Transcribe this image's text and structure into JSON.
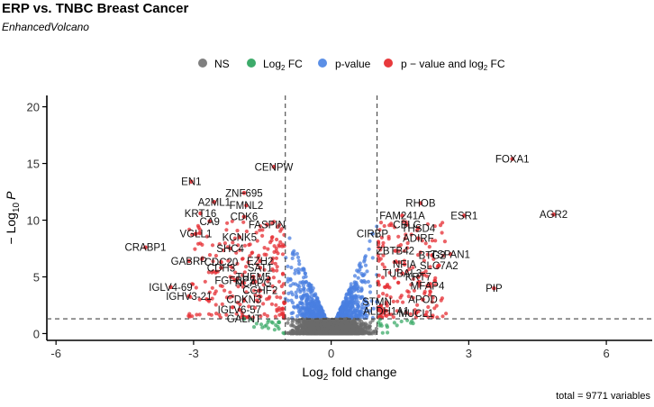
{
  "chart_data": {
    "type": "scatter",
    "title": "ERP vs. TNBC Breast Cancer",
    "subtitle": "EnhancedVolcano",
    "caption": "total = 9771 variables",
    "xlabel_main": "Log",
    "xlabel_sub": "2",
    "xlabel_rest": " fold change",
    "ylabel_prefix": "− Log",
    "ylabel_sub": "10",
    "ylabel_var": "P",
    "xlim": [
      -6.2,
      7.0
    ],
    "ylim": [
      -0.6,
      21.0
    ],
    "x_ticks": [
      -6,
      -3,
      0,
      3,
      6
    ],
    "y_ticks": [
      0,
      5,
      10,
      15,
      20
    ],
    "fc_cutoff": 1.0,
    "p_cutoff_neglog10": 1.3,
    "legend": [
      {
        "label": "NS",
        "color": "#7f7f7f"
      },
      {
        "label_main": "Log",
        "label_sub": "2",
        "label_rest": " FC",
        "color": "#3dab6a"
      },
      {
        "label": "p-value",
        "color": "#5b8fe6"
      },
      {
        "label_main": "p − value and log",
        "label_sub": "2",
        "label_rest": " FC",
        "color": "#e8393c"
      }
    ],
    "colors": {
      "ns": "#6b6b6b",
      "fc": "#3dab6a",
      "p": "#4a7fe0",
      "both": "#e62e33"
    },
    "labeled_genes": [
      {
        "name": "FOXA1",
        "x": 3.95,
        "y": 15.4
      },
      {
        "name": "AGR2",
        "x": 4.85,
        "y": 10.5
      },
      {
        "name": "ESR1",
        "x": 2.9,
        "y": 10.4
      },
      {
        "name": "PIP",
        "x": 3.55,
        "y": 4.0
      },
      {
        "name": "TSPAN1",
        "x": 2.6,
        "y": 7.0
      },
      {
        "name": "SLC7A2",
        "x": 2.35,
        "y": 6.0
      },
      {
        "name": "MFAP4",
        "x": 2.1,
        "y": 4.2
      },
      {
        "name": "RHOB",
        "x": 1.95,
        "y": 11.5
      },
      {
        "name": "THSD4",
        "x": 1.9,
        "y": 9.3
      },
      {
        "name": "FAM241A",
        "x": 1.55,
        "y": 10.4
      },
      {
        "name": "CBLC",
        "x": 1.65,
        "y": 9.6
      },
      {
        "name": "CIRBP",
        "x": 0.9,
        "y": 8.8
      },
      {
        "name": "ADIRF",
        "x": 1.9,
        "y": 8.4
      },
      {
        "name": "ZBTB42",
        "x": 1.4,
        "y": 7.3
      },
      {
        "name": "BTG2",
        "x": 2.2,
        "y": 6.9
      },
      {
        "name": "NFIA",
        "x": 1.6,
        "y": 6.1
      },
      {
        "name": "TUBAL3",
        "x": 1.55,
        "y": 5.3
      },
      {
        "name": "KRT7",
        "x": 1.9,
        "y": 5.0
      },
      {
        "name": "APOD",
        "x": 2.0,
        "y": 3.0
      },
      {
        "name": "STMN",
        "x": 1.0,
        "y": 2.8
      },
      {
        "name": "ALDH1A1",
        "x": 1.2,
        "y": 2.0
      },
      {
        "name": "MUCL1",
        "x": 1.85,
        "y": 1.8
      },
      {
        "name": "CENPW",
        "x": -1.25,
        "y": 14.7
      },
      {
        "name": "EN1",
        "x": -3.05,
        "y": 13.4
      },
      {
        "name": "ZNF695",
        "x": -1.9,
        "y": 12.4
      },
      {
        "name": "A2ML1",
        "x": -2.55,
        "y": 11.6
      },
      {
        "name": "FMNL2",
        "x": -1.85,
        "y": 11.3
      },
      {
        "name": "KRT16",
        "x": -2.85,
        "y": 10.6
      },
      {
        "name": "CDK6",
        "x": -1.9,
        "y": 10.3
      },
      {
        "name": "CA9",
        "x": -2.65,
        "y": 9.9
      },
      {
        "name": "FASPIN",
        "x": -1.4,
        "y": 9.6
      },
      {
        "name": "VGLL1",
        "x": -2.95,
        "y": 8.8
      },
      {
        "name": "KCNK5",
        "x": -2.0,
        "y": 8.5
      },
      {
        "name": "SHC4",
        "x": -2.2,
        "y": 7.5
      },
      {
        "name": "CRABP1",
        "x": -4.05,
        "y": 7.6
      },
      {
        "name": "GABRP",
        "x": -3.1,
        "y": 6.4
      },
      {
        "name": "CDC20",
        "x": -2.4,
        "y": 6.3
      },
      {
        "name": "EZH2",
        "x": -1.55,
        "y": 6.4
      },
      {
        "name": "SAT1",
        "x": -1.55,
        "y": 5.8
      },
      {
        "name": "CDH3",
        "x": -2.4,
        "y": 5.8
      },
      {
        "name": "THEM5",
        "x": -1.7,
        "y": 5.0
      },
      {
        "name": "FGFBP2",
        "x": -2.1,
        "y": 4.7
      },
      {
        "name": "NCAPG",
        "x": -1.7,
        "y": 4.5
      },
      {
        "name": "IGLV4-69",
        "x": -3.5,
        "y": 4.1
      },
      {
        "name": "CGHF2",
        "x": -1.55,
        "y": 3.8
      },
      {
        "name": "IGHV3-21",
        "x": -3.1,
        "y": 3.3
      },
      {
        "name": "CDKN3",
        "x": -1.9,
        "y": 3.0
      },
      {
        "name": "IGLV6-57",
        "x": -2.0,
        "y": 2.1
      },
      {
        "name": "GALNT",
        "x": -1.9,
        "y": 1.3
      }
    ]
  }
}
